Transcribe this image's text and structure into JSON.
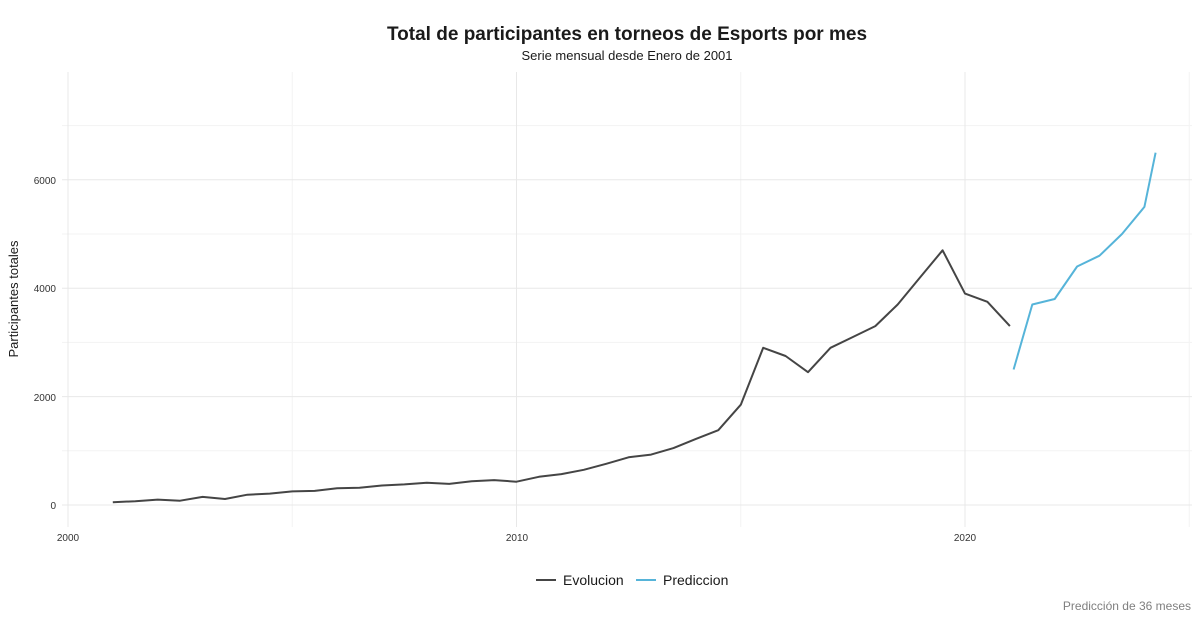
{
  "chart_data": {
    "type": "line",
    "title": "Total de participantes en torneos de Esports por mes",
    "subtitle": "Serie mensual desde Enero de 2001",
    "xlabel": "",
    "ylabel": "Participantes totales",
    "caption": "Predicción de 36 meses",
    "xlim": [
      2000,
      2025
    ],
    "ylim": [
      -400,
      8000
    ],
    "x_ticks": [
      "2000",
      "2010",
      "2020"
    ],
    "y_ticks": [
      "0",
      "2000",
      "4000",
      "6000"
    ],
    "grid": true,
    "legend_position": "bottom",
    "series": [
      {
        "name": "Evolucion",
        "color": "#454545",
        "points": [
          [
            2001.0,
            50
          ],
          [
            2001.5,
            70
          ],
          [
            2002.0,
            100
          ],
          [
            2002.5,
            80
          ],
          [
            2003.0,
            150
          ],
          [
            2003.5,
            110
          ],
          [
            2004.0,
            190
          ],
          [
            2004.5,
            210
          ],
          [
            2005.0,
            250
          ],
          [
            2005.5,
            260
          ],
          [
            2006.0,
            310
          ],
          [
            2006.5,
            320
          ],
          [
            2007.0,
            360
          ],
          [
            2007.5,
            380
          ],
          [
            2008.0,
            410
          ],
          [
            2008.5,
            390
          ],
          [
            2009.0,
            440
          ],
          [
            2009.5,
            460
          ],
          [
            2010.0,
            430
          ],
          [
            2010.5,
            520
          ],
          [
            2011.0,
            570
          ],
          [
            2011.5,
            650
          ],
          [
            2012.0,
            760
          ],
          [
            2012.5,
            880
          ],
          [
            2013.0,
            930
          ],
          [
            2013.5,
            1050
          ],
          [
            2014.0,
            1220
          ],
          [
            2014.5,
            1380
          ],
          [
            2015.0,
            1850
          ],
          [
            2015.5,
            2900
          ],
          [
            2016.0,
            2750
          ],
          [
            2016.5,
            2450
          ],
          [
            2017.0,
            2900
          ],
          [
            2017.5,
            3100
          ],
          [
            2018.0,
            3300
          ],
          [
            2018.5,
            3700
          ],
          [
            2019.0,
            4200
          ],
          [
            2019.5,
            4700
          ],
          [
            2020.0,
            3900
          ],
          [
            2020.5,
            3750
          ],
          [
            2021.0,
            3300
          ]
        ]
      },
      {
        "name": "Prediccion",
        "color": "#56b4d9",
        "points": [
          [
            2021.083,
            2500
          ],
          [
            2021.5,
            3700
          ],
          [
            2022.0,
            3800
          ],
          [
            2022.5,
            4400
          ],
          [
            2023.0,
            4600
          ],
          [
            2023.5,
            5000
          ],
          [
            2024.0,
            5500
          ],
          [
            2024.25,
            6500
          ]
        ]
      }
    ]
  }
}
